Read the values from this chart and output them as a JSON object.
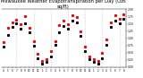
{
  "title": "Milwaukee Weather Evapotranspiration per Day (Ozs sq/ft)",
  "title_fontsize": 3.8,
  "background_color": "#ffffff",
  "grid_color": "#aaaaaa",
  "x_months": [
    "4",
    "5",
    "6",
    "7",
    "8",
    "9",
    "10",
    "11",
    "12",
    "1",
    "2",
    "3",
    "4",
    "5",
    "6",
    "7",
    "8",
    "9",
    "10",
    "11",
    "12",
    "1",
    "2",
    "3",
    "4",
    "5",
    "6",
    "7",
    "8"
  ],
  "ylim": [
    0.0,
    2.0
  ],
  "yticks": [
    0.0,
    0.25,
    0.5,
    0.75,
    1.0,
    1.25,
    1.5,
    1.75,
    2.0
  ],
  "ytick_labels": [
    "0.00",
    "0.25",
    "0.50",
    "0.75",
    "1.00",
    "1.25",
    "1.50",
    "1.75",
    "2.00"
  ],
  "red_x": [
    0,
    1,
    2,
    3,
    4,
    5,
    6,
    7,
    8,
    9,
    10,
    11,
    12,
    13,
    14,
    15,
    16,
    17,
    18,
    19,
    20,
    21,
    22,
    23,
    24,
    25,
    26,
    27,
    28
  ],
  "red_y": [
    0.85,
    1.35,
    1.55,
    1.65,
    1.5,
    1.75,
    1.35,
    0.9,
    0.45,
    0.22,
    0.28,
    0.55,
    0.9,
    1.45,
    1.6,
    1.5,
    1.8,
    1.72,
    1.25,
    0.7,
    0.38,
    0.28,
    0.22,
    0.5,
    0.95,
    1.55,
    1.8,
    1.68,
    1.82
  ],
  "black_x": [
    0,
    1,
    2,
    3,
    4,
    5,
    6,
    7,
    8,
    9,
    10,
    11,
    12,
    13,
    14,
    15,
    16,
    17,
    18,
    19,
    20,
    21,
    22,
    23,
    24,
    25,
    26,
    27,
    28
  ],
  "black_y": [
    0.72,
    1.12,
    1.38,
    1.52,
    1.32,
    1.52,
    1.22,
    0.75,
    0.32,
    0.12,
    0.18,
    0.38,
    0.78,
    1.22,
    1.42,
    1.32,
    1.62,
    1.55,
    1.08,
    0.55,
    0.28,
    0.18,
    0.12,
    0.32,
    0.78,
    1.38,
    1.62,
    1.52,
    1.68
  ],
  "vline_positions": [
    3,
    7,
    11,
    15,
    19,
    23,
    27
  ],
  "marker_size": 1.2,
  "dot_marker": "s"
}
